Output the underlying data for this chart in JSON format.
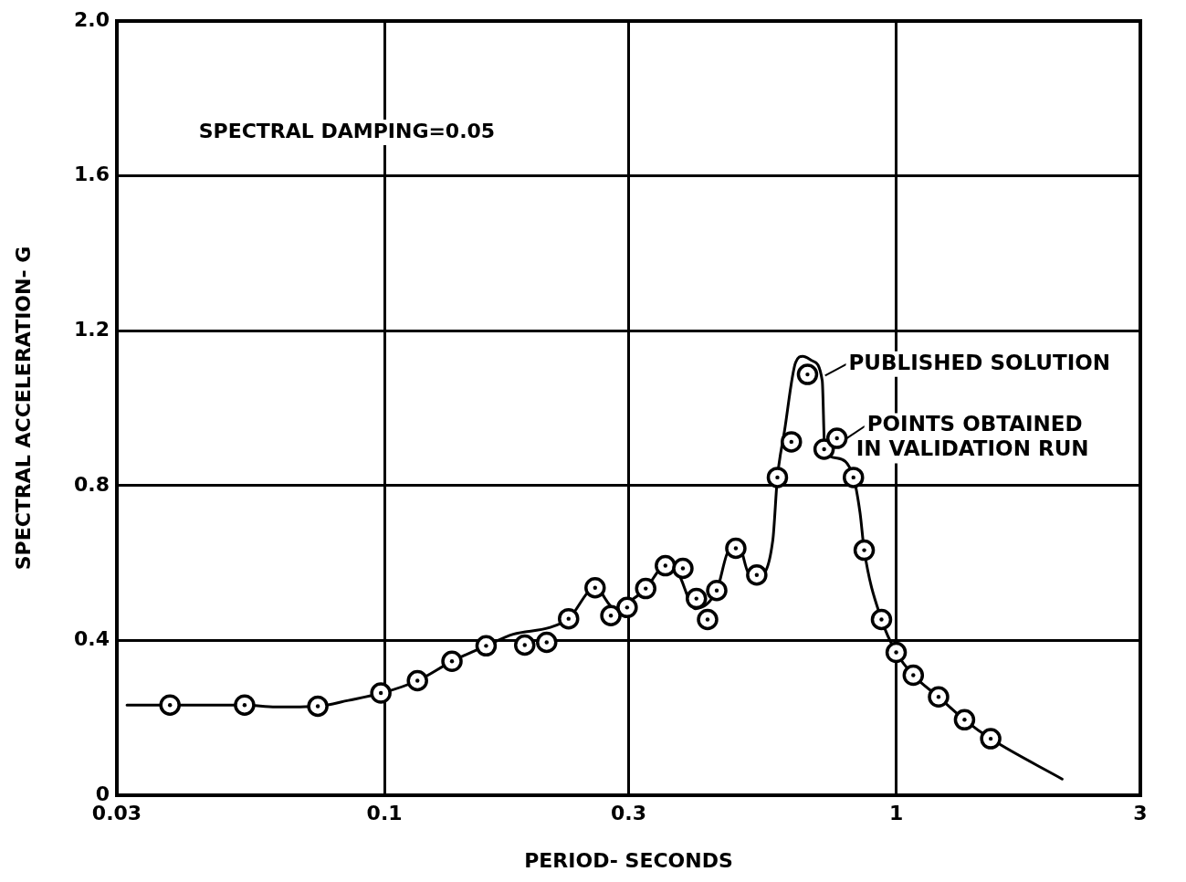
{
  "chart_data": {
    "type": "line",
    "xlabel": "PERIOD- SECONDS",
    "ylabel": "SPECTRAL ACCELERATION- G",
    "log": "x",
    "grid": true,
    "legend": "right",
    "xlim": [
      0.03,
      3
    ],
    "xticks": [
      0.03,
      0.1,
      0.3,
      1,
      3
    ],
    "ylim": [
      0,
      2.0
    ],
    "yticks": [
      0,
      0.4,
      0.8,
      1.2,
      1.6,
      {
        "value": 2.0,
        "label": "2.0"
      }
    ],
    "annotations": [
      "SPECTRAL DAMPING=0.05"
    ],
    "series": [
      {
        "name": "PUBLISHED SOLUTION",
        "type": "line",
        "marker": "none",
        "color": "#000000",
        "x": [
          0.0314,
          0.0381,
          0.0533,
          0.0613,
          0.0741,
          0.085,
          0.1,
          0.116,
          0.1355,
          0.158,
          0.1785,
          0.21,
          0.229,
          0.258,
          0.282,
          0.3,
          0.324,
          0.354,
          0.374,
          0.405,
          0.446,
          0.472,
          0.494,
          0.514,
          0.539,
          0.574,
          0.586,
          0.605,
          0.636,
          0.657,
          0.686,
          0.717,
          0.725,
          0.766,
          0.825,
          0.85,
          0.866,
          0.936,
          1.0,
          1.08,
          1.21,
          1.36,
          1.53,
          2.11
        ],
        "values": [
          0.233,
          0.233,
          0.233,
          0.228,
          0.23,
          0.245,
          0.266,
          0.296,
          0.346,
          0.386,
          0.416,
          0.433,
          0.456,
          0.536,
          0.482,
          0.499,
          0.534,
          0.593,
          0.576,
          0.482,
          0.529,
          0.635,
          0.64,
          0.576,
          0.569,
          0.659,
          0.821,
          0.941,
          1.118,
          1.134,
          1.122,
          1.071,
          0.894,
          0.871,
          0.821,
          0.729,
          0.633,
          0.454,
          0.369,
          0.31,
          0.254,
          0.195,
          0.146,
          0.042
        ]
      },
      {
        "name": "POINTS OBTAINED IN VALIDATION RUN",
        "type": "scatter",
        "marker": "circle",
        "color": "#000000",
        "x": [
          0.0381,
          0.0533,
          0.0741,
          0.0984,
          0.116,
          0.1355,
          0.158,
          0.188,
          0.2075,
          0.229,
          0.258,
          0.277,
          0.298,
          0.324,
          0.354,
          0.383,
          0.407,
          0.428,
          0.446,
          0.486,
          0.534,
          0.586,
          0.624,
          0.671,
          0.723,
          0.766,
          0.825,
          0.866,
          0.936,
          1.0,
          1.08,
          1.21,
          1.36,
          1.53
        ],
        "values": [
          0.233,
          0.233,
          0.23,
          0.264,
          0.296,
          0.346,
          0.386,
          0.388,
          0.395,
          0.456,
          0.536,
          0.464,
          0.485,
          0.534,
          0.593,
          0.586,
          0.508,
          0.454,
          0.529,
          0.638,
          0.569,
          0.821,
          0.913,
          1.087,
          0.894,
          0.922,
          0.821,
          0.633,
          0.454,
          0.369,
          0.31,
          0.254,
          0.195,
          0.146
        ]
      }
    ]
  }
}
